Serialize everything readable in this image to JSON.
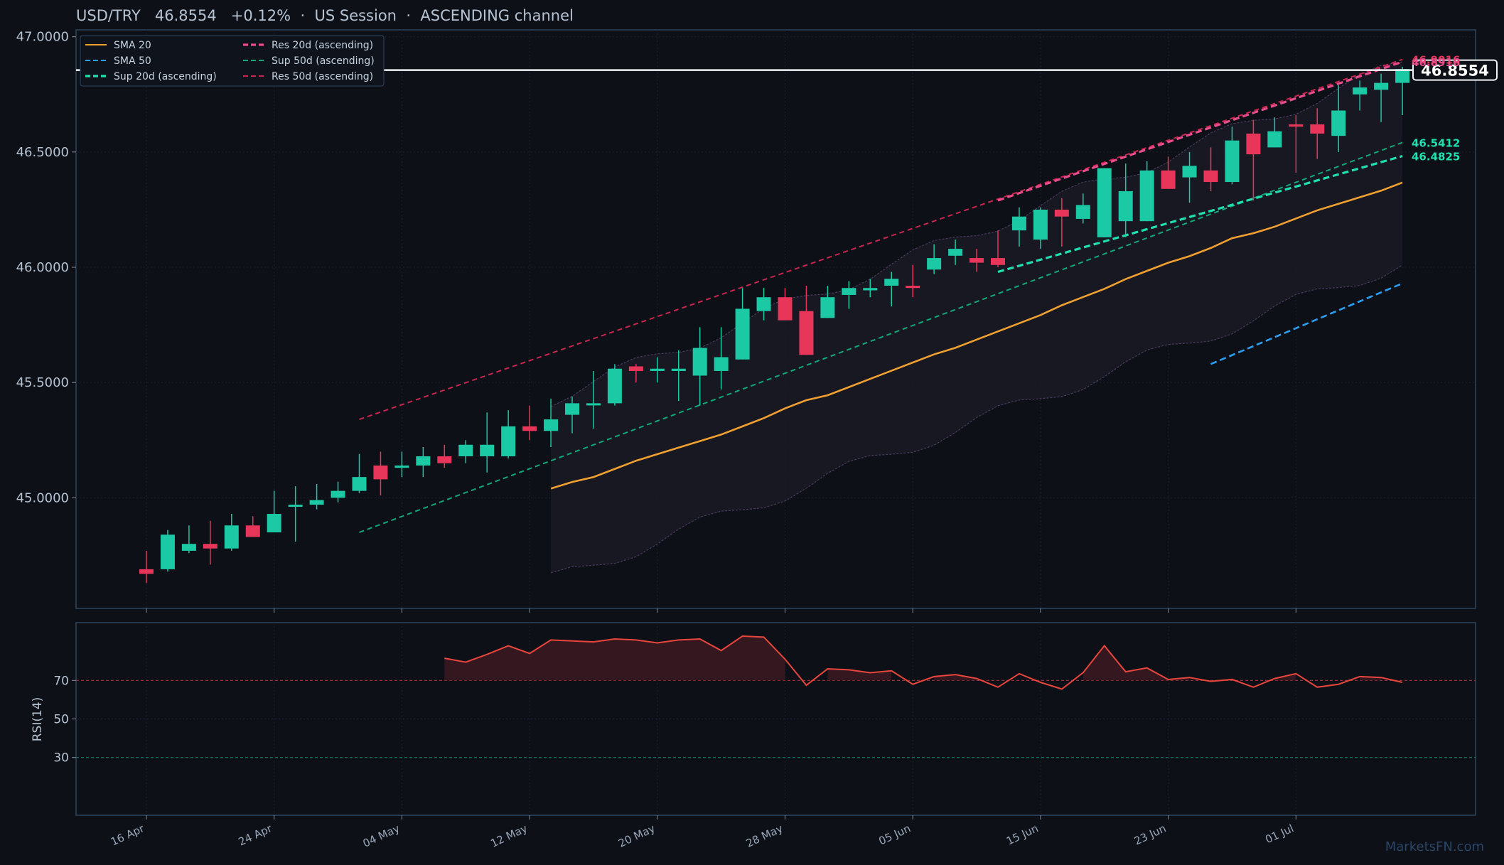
{
  "header": {
    "symbol": "USD/TRY",
    "price": "46.8554",
    "change": "+0.12%",
    "sep1": "·",
    "session": "US Session",
    "sep2": "·",
    "channel": "ASCENDING channel"
  },
  "watermark": "MarketsFN.com",
  "colors": {
    "background": "#0d1017",
    "panel_border": "#2d4560",
    "up_candle": "#1bc9a4",
    "down_candle": "#e8365a",
    "sma20": "#f0a030",
    "sma50": "#2a9ef0",
    "sup20": "#20e0b0",
    "sup50": "#12a878",
    "res20": "#e84c8c",
    "res50": "#c8264e",
    "rsi": "#e8463c"
  },
  "legend": [
    {
      "label": "SMA 20",
      "style": "solid",
      "color": "#f0a030"
    },
    {
      "label": "Res 20d (ascending)",
      "style": "dashed-bold",
      "color": "#e84c8c"
    },
    {
      "label": "SMA 50",
      "style": "dashed",
      "color": "#2a9ef0"
    },
    {
      "label": "Sup 50d (ascending)",
      "style": "dashed",
      "color": "#12a878"
    },
    {
      "label": "Sup 20d (ascending)",
      "style": "dashed-bold",
      "color": "#20e0b0"
    },
    {
      "label": "Res 50d (ascending)",
      "style": "dashed",
      "color": "#c8264e"
    }
  ],
  "chart_data": [
    {
      "type": "candlestick",
      "title": "USD/TRY 46.8554 +0.12% · US Session · ASCENDING channel",
      "ylim": [
        44.52,
        47.03
      ],
      "y_ticks": [
        "45.0000",
        "45.5000",
        "46.0000",
        "46.5000",
        "47.0000"
      ],
      "y_tick_values": [
        45.0,
        45.5,
        46.0,
        46.5,
        47.0
      ],
      "x_ticks": [
        "16 Apr",
        "24 Apr",
        "04 May",
        "12 May",
        "20 May",
        "28 May",
        "05 Jun",
        "15 Jun",
        "23 Jun",
        "01 Jul"
      ],
      "x_tick_index": [
        0,
        6,
        12,
        18,
        24,
        30,
        36,
        42,
        48,
        54
      ],
      "last_price_label": "46.8554",
      "last_price": 46.8554,
      "right_labels": [
        {
          "text": "46.5412",
          "value": 46.5412,
          "color": "#20e0b0"
        },
        {
          "text": "46.4825",
          "value": 46.4825,
          "color": "#20e0b0"
        },
        {
          "text": "46.9016",
          "value": 46.9016,
          "color": "#e8365a"
        },
        {
          "text": "46.8916",
          "value": 46.8916,
          "color": "#e84c8c"
        }
      ],
      "grid": true,
      "candles": [
        [
          44.69,
          44.77,
          44.63,
          44.67
        ],
        [
          44.69,
          44.86,
          44.68,
          44.84
        ],
        [
          44.77,
          44.88,
          44.76,
          44.8
        ],
        [
          44.8,
          44.9,
          44.71,
          44.78
        ],
        [
          44.78,
          44.93,
          44.77,
          44.88
        ],
        [
          44.88,
          44.92,
          44.83,
          44.83
        ],
        [
          44.85,
          45.03,
          44.85,
          44.93
        ],
        [
          44.97,
          45.05,
          44.81,
          44.97
        ],
        [
          44.97,
          45.06,
          44.95,
          44.99
        ],
        [
          45.0,
          45.07,
          44.98,
          45.03
        ],
        [
          45.03,
          45.19,
          45.02,
          45.09
        ],
        [
          45.14,
          45.2,
          45.01,
          45.08
        ],
        [
          45.13,
          45.2,
          45.09,
          45.14
        ],
        [
          45.14,
          45.22,
          45.09,
          45.18
        ],
        [
          45.18,
          45.23,
          45.13,
          45.15
        ],
        [
          45.18,
          45.25,
          45.15,
          45.23
        ],
        [
          45.18,
          45.37,
          45.11,
          45.23
        ],
        [
          45.18,
          45.38,
          45.17,
          45.31
        ],
        [
          45.31,
          45.4,
          45.25,
          45.29
        ],
        [
          45.29,
          45.43,
          45.22,
          45.34
        ],
        [
          45.36,
          45.44,
          45.28,
          45.41
        ],
        [
          45.41,
          45.55,
          45.3,
          45.41
        ],
        [
          45.41,
          45.58,
          45.4,
          45.56
        ],
        [
          45.57,
          45.58,
          45.5,
          45.55
        ],
        [
          45.55,
          45.61,
          45.5,
          45.56
        ],
        [
          45.55,
          45.64,
          45.42,
          45.56
        ],
        [
          45.53,
          45.74,
          45.4,
          45.65
        ],
        [
          45.55,
          45.74,
          45.47,
          45.61
        ],
        [
          45.6,
          45.91,
          45.6,
          45.82
        ],
        [
          45.81,
          45.91,
          45.77,
          45.87
        ],
        [
          45.87,
          45.91,
          45.77,
          45.77
        ],
        [
          45.81,
          45.92,
          45.62,
          45.62
        ],
        [
          45.78,
          45.92,
          45.78,
          45.87
        ],
        [
          45.88,
          45.94,
          45.82,
          45.91
        ],
        [
          45.9,
          45.95,
          45.87,
          45.91
        ],
        [
          45.92,
          45.98,
          45.83,
          45.95
        ],
        [
          45.92,
          46.01,
          45.87,
          45.91
        ],
        [
          45.99,
          46.1,
          45.97,
          46.04
        ],
        [
          46.05,
          46.12,
          46.01,
          46.08
        ],
        [
          46.04,
          46.08,
          45.98,
          46.02
        ],
        [
          46.04,
          46.16,
          46.0,
          46.01
        ],
        [
          46.16,
          46.26,
          46.09,
          46.22
        ],
        [
          46.12,
          46.26,
          46.08,
          46.25
        ],
        [
          46.25,
          46.3,
          46.09,
          46.22
        ],
        [
          46.21,
          46.32,
          46.19,
          46.27
        ],
        [
          46.13,
          46.43,
          46.13,
          46.43
        ],
        [
          46.2,
          46.45,
          46.13,
          46.33
        ],
        [
          46.2,
          46.46,
          46.2,
          46.42
        ],
        [
          46.42,
          46.48,
          46.34,
          46.34
        ],
        [
          46.39,
          46.5,
          46.28,
          46.44
        ],
        [
          46.42,
          46.52,
          46.33,
          46.37
        ],
        [
          46.37,
          46.61,
          46.36,
          46.55
        ],
        [
          46.58,
          46.64,
          46.29,
          46.49
        ],
        [
          46.52,
          46.65,
          46.52,
          46.59
        ],
        [
          46.62,
          46.66,
          46.41,
          46.61
        ],
        [
          46.62,
          46.69,
          46.47,
          46.58
        ],
        [
          46.57,
          46.79,
          46.5,
          46.68
        ],
        [
          46.75,
          46.81,
          46.68,
          46.78
        ],
        [
          46.77,
          46.84,
          46.63,
          46.8
        ],
        [
          46.8,
          46.87,
          46.66,
          46.86
        ]
      ],
      "sma20": {
        "start": 19,
        "end": 59,
        "from": 45.04,
        "to": 46.46,
        "shape": [
          0,
          0.02,
          0.035,
          0.06,
          0.085,
          0.105,
          0.125,
          0.145,
          0.165,
          0.19,
          0.215,
          0.245,
          0.27,
          0.285,
          0.31,
          0.335,
          0.36,
          0.385,
          0.41,
          0.43,
          0.455,
          0.48,
          0.505,
          0.53,
          0.56,
          0.585,
          0.61,
          0.64,
          0.665,
          0.69,
          0.71,
          0.735,
          0.765,
          0.78,
          0.8,
          0.825,
          0.85,
          0.87,
          0.89,
          0.91,
          0.935
        ]
      },
      "sma20_band": {
        "upper_from": 45.43,
        "upper_to": 46.88,
        "lower_from": 44.64,
        "lower_to": 46.02
      },
      "sma50": {
        "from_index": 50,
        "from": 45.58,
        "to": 45.93
      },
      "sup20": {
        "from_index": 40,
        "from": 45.98,
        "to": 46.4825
      },
      "sup50": {
        "from_index": 10,
        "from": 44.85,
        "to": 46.5412
      },
      "res20": {
        "from_index": 40,
        "from": 46.29,
        "to": 46.8916
      },
      "res50": {
        "from_index": 10,
        "from": 45.34,
        "to": 46.9016
      }
    },
    {
      "type": "line",
      "ylabel": "RSI(14)",
      "ylim": [
        0,
        100
      ],
      "y_ticks": [
        "30",
        "50",
        "70"
      ],
      "y_tick_values": [
        30,
        50,
        70
      ],
      "start_index": 14,
      "values": [
        81.5,
        79.5,
        83.5,
        88,
        84,
        91,
        90.5,
        90,
        91.5,
        91,
        89.5,
        91,
        91.5,
        85.5,
        93,
        92.5,
        81,
        67.5,
        76,
        75.5,
        74,
        75,
        68,
        72,
        73,
        71,
        66.5,
        73.5,
        69,
        65.5,
        74,
        88,
        74.5,
        76.5,
        70.5,
        71.5,
        69.5,
        70.5,
        66.5,
        71,
        73.5,
        66.5,
        68,
        72,
        71.5,
        69
      ]
    }
  ]
}
